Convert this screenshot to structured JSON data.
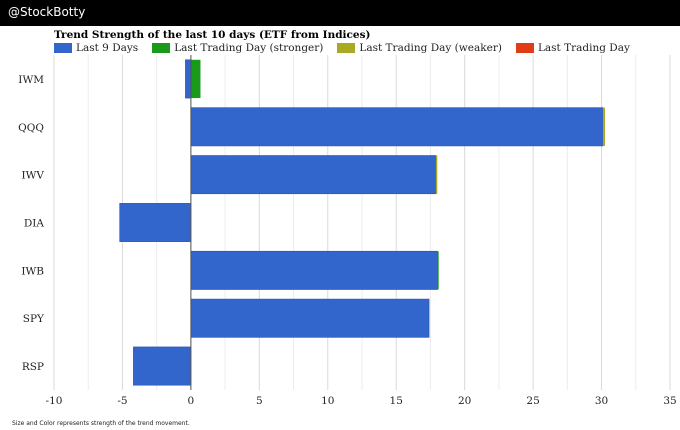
{
  "header": {
    "handle": "@StockBotty"
  },
  "colors": {
    "last9": "#3366CC",
    "stronger": "#1A9A1A",
    "weaker": "#AAAA22",
    "lastday": "#E03C15",
    "background": "#000000"
  },
  "chart_data": {
    "type": "bar",
    "orientation": "horizontal",
    "stacked": true,
    "title": "Trend Strength of the last 10 days (ETF from Indices)",
    "categories": [
      "IWM",
      "QQQ",
      "IWV",
      "DIA",
      "IWB",
      "SPY",
      "RSP"
    ],
    "series": [
      {
        "name": "Last 9 Days",
        "values": [
          -0.4,
          30.1,
          17.9,
          -5.2,
          18.0,
          17.4,
          -4.2
        ]
      },
      {
        "name": "Last Trading Day (stronger)",
        "values": [
          0.7,
          0,
          0,
          0,
          0.1,
          0,
          0
        ]
      },
      {
        "name": "Last Trading Day (weaker)",
        "values": [
          0,
          0.15,
          0.1,
          0,
          0,
          0,
          0
        ]
      },
      {
        "name": "Last Trading Day",
        "values": [
          0,
          0,
          0,
          0,
          0,
          0,
          0
        ]
      }
    ],
    "xlim": [
      -10,
      35
    ],
    "xticks": [
      "-10",
      "-5",
      "0",
      "5",
      "10",
      "15",
      "20",
      "25",
      "30",
      "35"
    ],
    "legend_placement": "top-left",
    "grid": true
  },
  "footnote": "Size and Color represents strength of the trend movement."
}
